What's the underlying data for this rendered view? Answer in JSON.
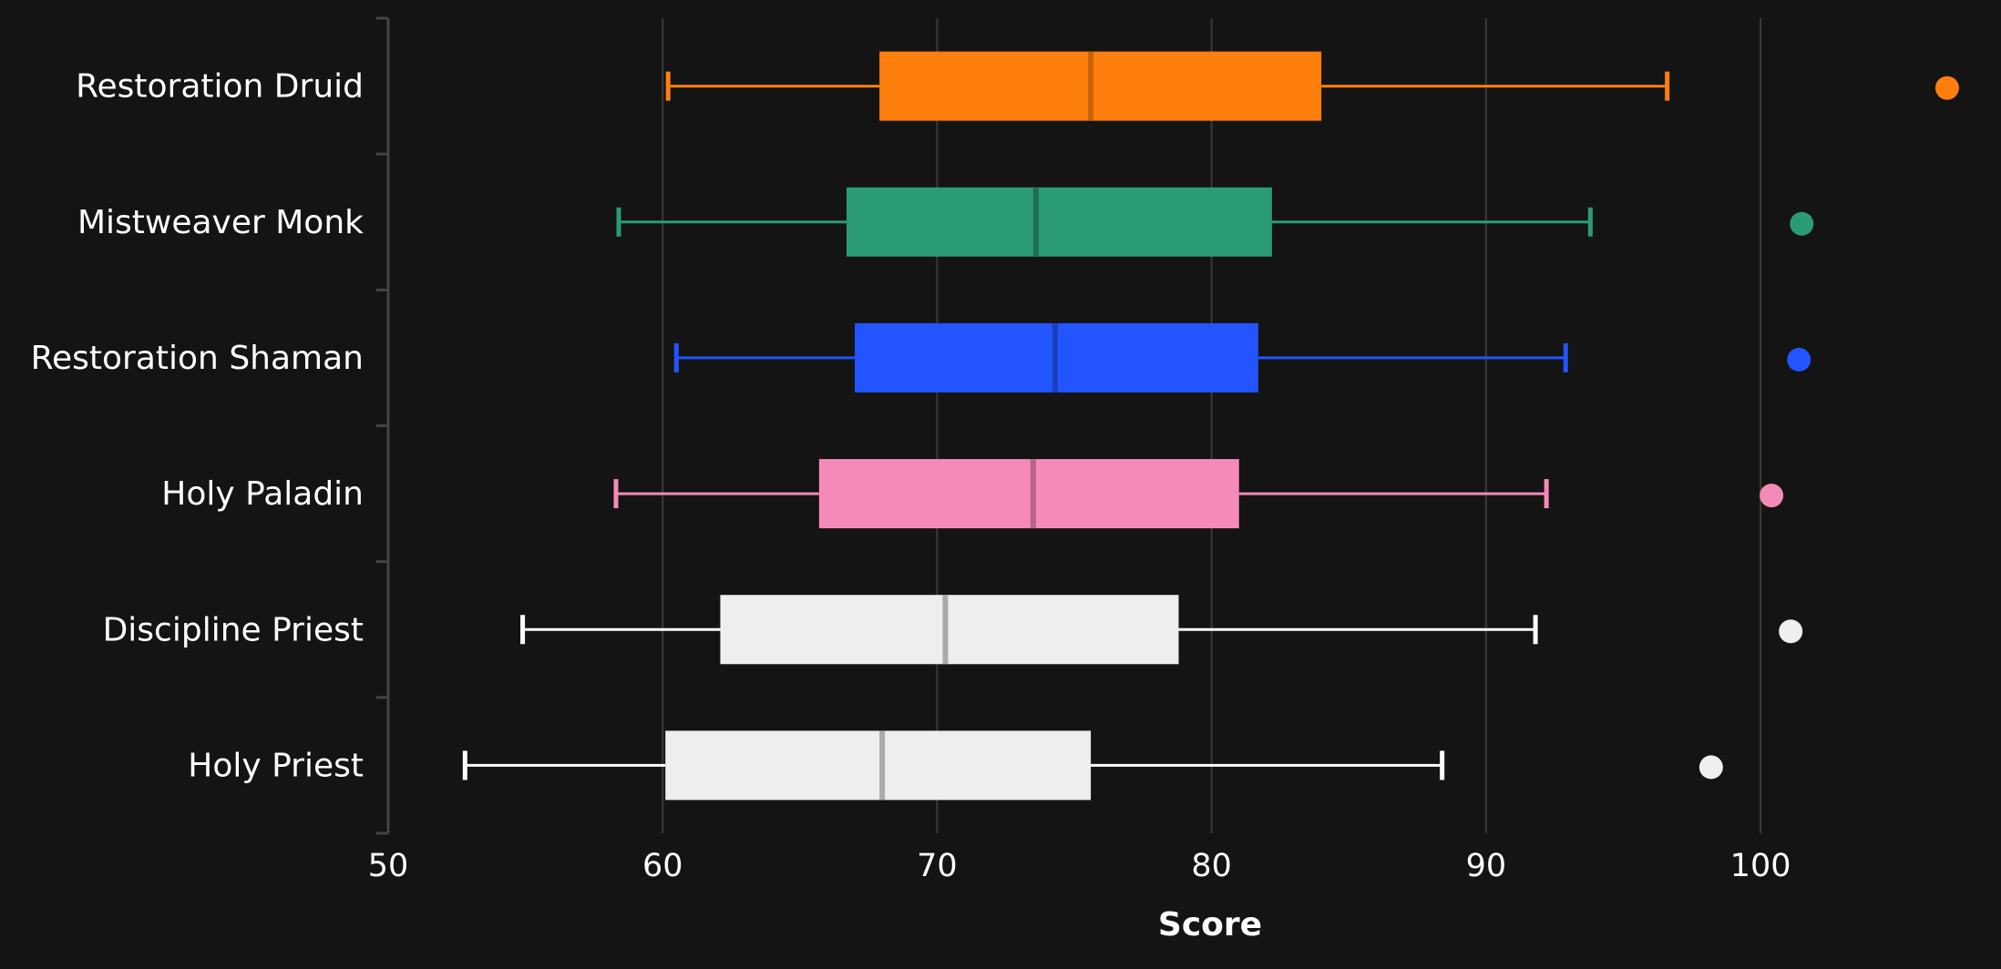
{
  "chart_data": {
    "type": "box",
    "orientation": "horizontal",
    "title": "",
    "xlabel": "Score",
    "ylabel": "",
    "xlim": [
      50,
      107.5
    ],
    "xticks": [
      50,
      60,
      70,
      80,
      90,
      100
    ],
    "grid": "vertical",
    "legend": "none",
    "background": "#141414",
    "categories": [
      "Restoration Druid",
      "Mistweaver Monk",
      "Restoration Shaman",
      "Holy Paladin",
      "Discipline Priest",
      "Holy Priest"
    ],
    "series": [
      {
        "whisker_low": 60.2,
        "q1": 67.9,
        "median": 75.6,
        "q3": 84.0,
        "whisker_high": 96.6,
        "outliers": [
          106.8
        ],
        "color": "#ff7f0e",
        "median_color": "#c9620a"
      },
      {
        "whisker_low": 58.4,
        "q1": 66.7,
        "median": 73.6,
        "q3": 82.2,
        "whisker_high": 93.8,
        "outliers": [
          101.5
        ],
        "color": "#2a9a77",
        "median_color": "#1f6e55"
      },
      {
        "whisker_low": 60.5,
        "q1": 67.0,
        "median": 74.3,
        "q3": 81.7,
        "whisker_high": 92.9,
        "outliers": [
          101.4
        ],
        "color": "#2255ff",
        "median_color": "#1a3fb8"
      },
      {
        "whisker_low": 58.3,
        "q1": 65.7,
        "median": 73.5,
        "q3": 81.0,
        "whisker_high": 92.2,
        "outliers": [
          100.4
        ],
        "color": "#f58ab8",
        "median_color": "#b86488"
      },
      {
        "whisker_low": 54.9,
        "q1": 62.1,
        "median": 70.3,
        "q3": 78.8,
        "whisker_high": 91.8,
        "outliers": [
          101.1
        ],
        "color": "#eeeeee",
        "whisker_color": "#ffffff",
        "median_color": "#aaaaaa"
      },
      {
        "whisker_low": 52.8,
        "q1": 60.1,
        "median": 68.0,
        "q3": 75.6,
        "whisker_high": 88.4,
        "outliers": [
          98.2
        ],
        "color": "#eeeeee",
        "whisker_color": "#ffffff",
        "median_color": "#aaaaaa"
      }
    ]
  }
}
